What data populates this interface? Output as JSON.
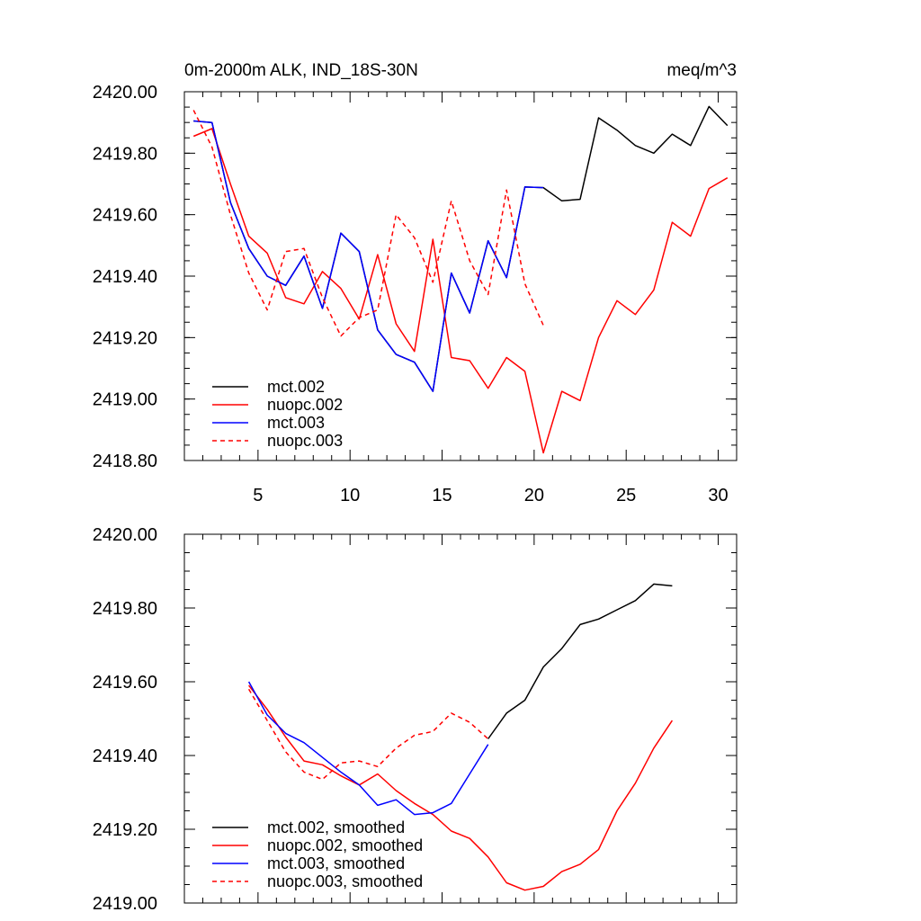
{
  "chart_data": [
    {
      "type": "line",
      "title": "0m-2000m ALK, IND_18S-30N",
      "units": "meq/m^3",
      "xlim": [
        1,
        31
      ],
      "ylim": [
        2418.8,
        2420.0
      ],
      "xticks": [
        5,
        10,
        15,
        20,
        25,
        30
      ],
      "yticks": [
        2418.8,
        2419.0,
        2419.2,
        2419.4,
        2419.6,
        2419.8,
        2420.0
      ],
      "ytick_labels": [
        "2418.80",
        "2419.00",
        "2419.20",
        "2419.40",
        "2419.60",
        "2419.80",
        "2420.00"
      ],
      "legend_position": "bottom-left",
      "series": [
        {
          "name": "mct.002",
          "color": "#000000",
          "dash": "solid",
          "x": [
            1.5,
            2.5,
            3.5,
            4.5,
            5.5,
            6.5,
            7.5,
            8.5,
            9.5,
            10.5,
            11.5,
            12.5,
            13.5,
            14.5,
            15.5,
            16.5,
            17.5,
            18.5,
            19.5,
            20.5,
            21.5,
            22.5,
            23.5,
            24.5,
            25.5,
            26.5,
            27.5,
            28.5,
            29.5,
            30.5
          ],
          "values": [
            2419.905,
            2419.9,
            2419.64,
            2419.49,
            2419.4,
            2419.37,
            2419.465,
            2419.295,
            2419.54,
            2419.48,
            2419.225,
            2419.145,
            2419.12,
            2419.025,
            2419.41,
            2419.28,
            2419.515,
            2419.395,
            2419.69,
            2419.688,
            2419.645,
            2419.65,
            2419.915,
            2419.875,
            2419.825,
            2419.8,
            2419.862,
            2419.825,
            2419.952,
            2419.89
          ]
        },
        {
          "name": "nuopc.002",
          "color": "#ff0000",
          "dash": "solid",
          "x": [
            1.5,
            2.5,
            3.5,
            4.5,
            5.5,
            6.5,
            7.5,
            8.5,
            9.5,
            10.5,
            11.5,
            12.5,
            13.5,
            14.5,
            15.5,
            16.5,
            17.5,
            18.5,
            19.5,
            20.5,
            21.5,
            22.5,
            23.5,
            24.5,
            25.5,
            26.5,
            27.5,
            28.5,
            29.5,
            30.5
          ],
          "values": [
            2419.855,
            2419.88,
            2419.7,
            2419.53,
            2419.475,
            2419.33,
            2419.31,
            2419.415,
            2419.36,
            2419.26,
            2419.47,
            2419.245,
            2419.155,
            2419.52,
            2419.135,
            2419.125,
            2419.035,
            2419.135,
            2419.09,
            2418.825,
            2419.025,
            2418.995,
            2419.2,
            2419.32,
            2419.275,
            2419.355,
            2419.575,
            2419.53,
            2419.685,
            2419.72
          ]
        },
        {
          "name": "mct.003",
          "color": "#0000ff",
          "dash": "solid",
          "x": [
            1.5,
            2.5,
            3.5,
            4.5,
            5.5,
            6.5,
            7.5,
            8.5,
            9.5,
            10.5,
            11.5,
            12.5,
            13.5,
            14.5,
            15.5,
            16.5,
            17.5,
            18.5,
            19.5,
            20.5
          ],
          "values": [
            2419.905,
            2419.9,
            2419.64,
            2419.49,
            2419.4,
            2419.37,
            2419.465,
            2419.295,
            2419.54,
            2419.48,
            2419.225,
            2419.145,
            2419.12,
            2419.025,
            2419.41,
            2419.28,
            2419.515,
            2419.395,
            2419.69,
            2419.688
          ]
        },
        {
          "name": "nuopc.003",
          "color": "#ff0000",
          "dash": "dashed",
          "x": [
            1.5,
            2.5,
            3.5,
            4.5,
            5.5,
            6.5,
            7.5,
            8.5,
            9.5,
            10.5,
            11.5,
            12.5,
            13.5,
            14.5,
            15.5,
            16.5,
            17.5,
            18.5,
            19.5,
            20.5
          ],
          "values": [
            2419.94,
            2419.82,
            2419.6,
            2419.41,
            2419.29,
            2419.48,
            2419.49,
            2419.33,
            2419.205,
            2419.265,
            2419.29,
            2419.6,
            2419.525,
            2419.38,
            2419.645,
            2419.45,
            2419.34,
            2419.68,
            2419.375,
            2419.24
          ]
        }
      ]
    },
    {
      "type": "line",
      "title": "",
      "xlim": [
        1,
        31
      ],
      "ylim": [
        2419.0,
        2420.0
      ],
      "xticks": [
        5,
        10,
        15,
        20,
        25,
        30
      ],
      "yticks": [
        2419.0,
        2419.2,
        2419.4,
        2419.6,
        2419.8,
        2420.0
      ],
      "ytick_labels": [
        "2419.00",
        "2419.20",
        "2419.40",
        "2419.60",
        "2419.80",
        "2420.00"
      ],
      "legend_position": "bottom-left",
      "series": [
        {
          "name": "mct.002, smoothed",
          "color": "#000000",
          "dash": "solid",
          "x": [
            17.5,
            18.5,
            19.5,
            20.5,
            21.5,
            22.5,
            23.5,
            24.5,
            25.5,
            26.5,
            27.5
          ],
          "values": [
            2419.445,
            2419.515,
            2419.55,
            2419.64,
            2419.69,
            2419.755,
            2419.77,
            2419.795,
            2419.82,
            2419.865,
            2419.86
          ]
        },
        {
          "name": "nuopc.002, smoothed",
          "color": "#ff0000",
          "dash": "solid",
          "x": [
            4.5,
            5.5,
            6.5,
            7.5,
            8.5,
            9.5,
            10.5,
            11.5,
            12.5,
            13.5,
            14.5,
            15.5,
            16.5,
            17.5,
            18.5,
            19.5,
            20.5,
            21.5,
            22.5,
            23.5,
            24.5,
            25.5,
            26.5,
            27.5
          ],
          "values": [
            2419.59,
            2419.525,
            2419.45,
            2419.385,
            2419.375,
            2419.345,
            2419.32,
            2419.35,
            2419.305,
            2419.27,
            2419.24,
            2419.195,
            2419.175,
            2419.125,
            2419.055,
            2419.035,
            2419.045,
            2419.085,
            2419.105,
            2419.145,
            2419.25,
            2419.325,
            2419.42,
            2419.495
          ]
        },
        {
          "name": "mct.003, smoothed",
          "color": "#0000ff",
          "dash": "solid",
          "x": [
            4.5,
            5.5,
            6.5,
            7.5,
            8.5,
            9.5,
            10.5,
            11.5,
            12.5,
            13.5,
            14.5,
            15.5,
            16.5,
            17.5
          ],
          "values": [
            2419.6,
            2419.51,
            2419.46,
            2419.435,
            2419.395,
            2419.355,
            2419.32,
            2419.265,
            2419.28,
            2419.24,
            2419.245,
            2419.27,
            2419.35,
            2419.43
          ]
        },
        {
          "name": "nuopc.003, smoothed",
          "color": "#ff0000",
          "dash": "dashed",
          "x": [
            4.5,
            5.5,
            6.5,
            7.5,
            8.5,
            9.5,
            10.5,
            11.5,
            12.5,
            13.5,
            14.5,
            15.5,
            16.5,
            17.5
          ],
          "values": [
            2419.58,
            2419.495,
            2419.41,
            2419.355,
            2419.335,
            2419.38,
            2419.385,
            2419.37,
            2419.42,
            2419.455,
            2419.465,
            2419.515,
            2419.49,
            2419.445
          ]
        }
      ]
    }
  ]
}
